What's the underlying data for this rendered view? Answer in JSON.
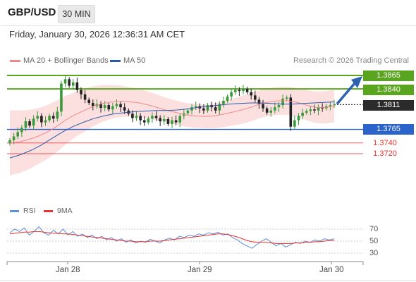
{
  "header": {
    "symbol": "GBP/USD",
    "timeframe": "30 MIN"
  },
  "timestamp": "Friday, January 30, 2026 12:36:31 AM CET",
  "legend": {
    "ma20_label": "MA 20 + Bollinger Bands",
    "ma50_label": "MA 50",
    "ma20_color": "#f08a8a",
    "ma50_color": "#2a5aa8"
  },
  "copyright": "Research © 2026 Trading Central",
  "colors": {
    "resistance": "#5aa51f",
    "support": "#2a63c9",
    "support_minor": "#e8332e",
    "bull": "#3a9a3a",
    "bear": "#222222",
    "bollinger_fill": "#fbdada"
  },
  "chart_data": {
    "type": "candlestick",
    "symbol": "GBP/USD",
    "interval": "30 MIN",
    "x_tick_labels": [
      "Jan 28",
      "Jan 29",
      "Jan 30"
    ],
    "price_range": [
      1.362,
      1.388
    ],
    "levels": {
      "resistance": [
        1.3865,
        1.384
      ],
      "current": 1.3811,
      "support": [
        1.3765,
        1.374,
        1.372
      ]
    },
    "level_labels": {
      "r2": "1.3865",
      "r1": "1.3840",
      "current": "1.3811",
      "s1": "1.3765",
      "s2": "1.3740",
      "s3": "1.3720"
    },
    "price_closes": [
      1.3745,
      1.3752,
      1.376,
      1.3768,
      1.378,
      1.3772,
      1.3785,
      1.379,
      1.3778,
      1.3782,
      1.379,
      1.3785,
      1.3798,
      1.385,
      1.3858,
      1.3846,
      1.3852,
      1.3838,
      1.383,
      1.382,
      1.3814,
      1.3808,
      1.3812,
      1.3805,
      1.381,
      1.3802,
      1.3808,
      1.3812,
      1.3806,
      1.38,
      1.3794,
      1.3786,
      1.379,
      1.3782,
      1.3778,
      1.3785,
      1.379,
      1.3786,
      1.378,
      1.3784,
      1.3775,
      1.3782,
      1.3778,
      1.379,
      1.3795,
      1.38,
      1.3806,
      1.3808,
      1.3804,
      1.38,
      1.381,
      1.3806,
      1.38,
      1.3812,
      1.3818,
      1.3826,
      1.3834,
      1.3838,
      1.3836,
      1.384,
      1.3834,
      1.3828,
      1.382,
      1.3812,
      1.3804,
      1.3796,
      1.38,
      1.3806,
      1.381,
      1.3822,
      1.3824,
      1.377,
      1.3782,
      1.379,
      1.3796,
      1.3799,
      1.3802,
      1.38,
      1.3806,
      1.3804,
      1.3808,
      1.381,
      1.3811
    ],
    "ma20": [
      1.374,
      1.3742,
      1.3746,
      1.3752,
      1.376,
      1.377,
      1.3782,
      1.3792,
      1.38,
      1.3808,
      1.3813,
      1.3816,
      1.3817,
      1.3816,
      1.3814,
      1.381,
      1.3805,
      1.38,
      1.3796,
      1.3792,
      1.379,
      1.3789,
      1.379,
      1.3793,
      1.3797,
      1.3801,
      1.3806,
      1.3812,
      1.3816,
      1.3818,
      1.3818,
      1.3815,
      1.381,
      1.3806,
      1.3806,
      1.3808
    ],
    "ma50": [
      1.3712,
      1.3718,
      1.3726,
      1.3736,
      1.3748,
      1.376,
      1.377,
      1.3778,
      1.3785,
      1.379,
      1.3794,
      1.3796,
      1.3798,
      1.3799,
      1.38,
      1.38,
      1.3801,
      1.3803,
      1.3806,
      1.3808,
      1.381,
      1.3812,
      1.3813,
      1.3814,
      1.3814,
      1.3813,
      1.3812,
      1.3812,
      1.3813,
      1.3814,
      1.3815,
      1.3816
    ],
    "forecast_target": 1.3865,
    "rsi": {
      "series": [
        {
          "name": "RSI",
          "color": "#5b8fd8"
        },
        {
          "name": "9MA",
          "color": "#e8332e"
        }
      ],
      "levels": [
        70,
        50,
        30
      ],
      "rsi_values": [
        64,
        70,
        66,
        72,
        60,
        66,
        74,
        64,
        60,
        68,
        62,
        70,
        60,
        66,
        58,
        62,
        56,
        60,
        54,
        58,
        52,
        56,
        50,
        54,
        48,
        52,
        47,
        50,
        48,
        53,
        50,
        47,
        52,
        55,
        52,
        58,
        56,
        60,
        58,
        62,
        60,
        64,
        62,
        65,
        60,
        62,
        56,
        52,
        46,
        42,
        38,
        44,
        50,
        54,
        48,
        42,
        46,
        40,
        44,
        48,
        46,
        50,
        48,
        52,
        50,
        54,
        52,
        54
      ],
      "ma_values": [
        62,
        63,
        64,
        65,
        65,
        66,
        66,
        65,
        64,
        63,
        63,
        62,
        62,
        61,
        60,
        59,
        58,
        57,
        56,
        55,
        54,
        53,
        52,
        51,
        50,
        50,
        49,
        49,
        49,
        50,
        50,
        50,
        51,
        52,
        53,
        54,
        55,
        56,
        57,
        58,
        59,
        60,
        61,
        62,
        62,
        61,
        59,
        57,
        54,
        51,
        49,
        48,
        48,
        48,
        47,
        46,
        46,
        46,
        46,
        47,
        47,
        48,
        48,
        49,
        49,
        50,
        51,
        51
      ]
    }
  },
  "rsi_legend": {
    "rsi_label": "RSI",
    "ma_label": "9MA",
    "rsi_color": "#5b8fd8",
    "ma_color": "#e8332e"
  },
  "rsi_levels": [
    "70",
    "50",
    "30"
  ]
}
